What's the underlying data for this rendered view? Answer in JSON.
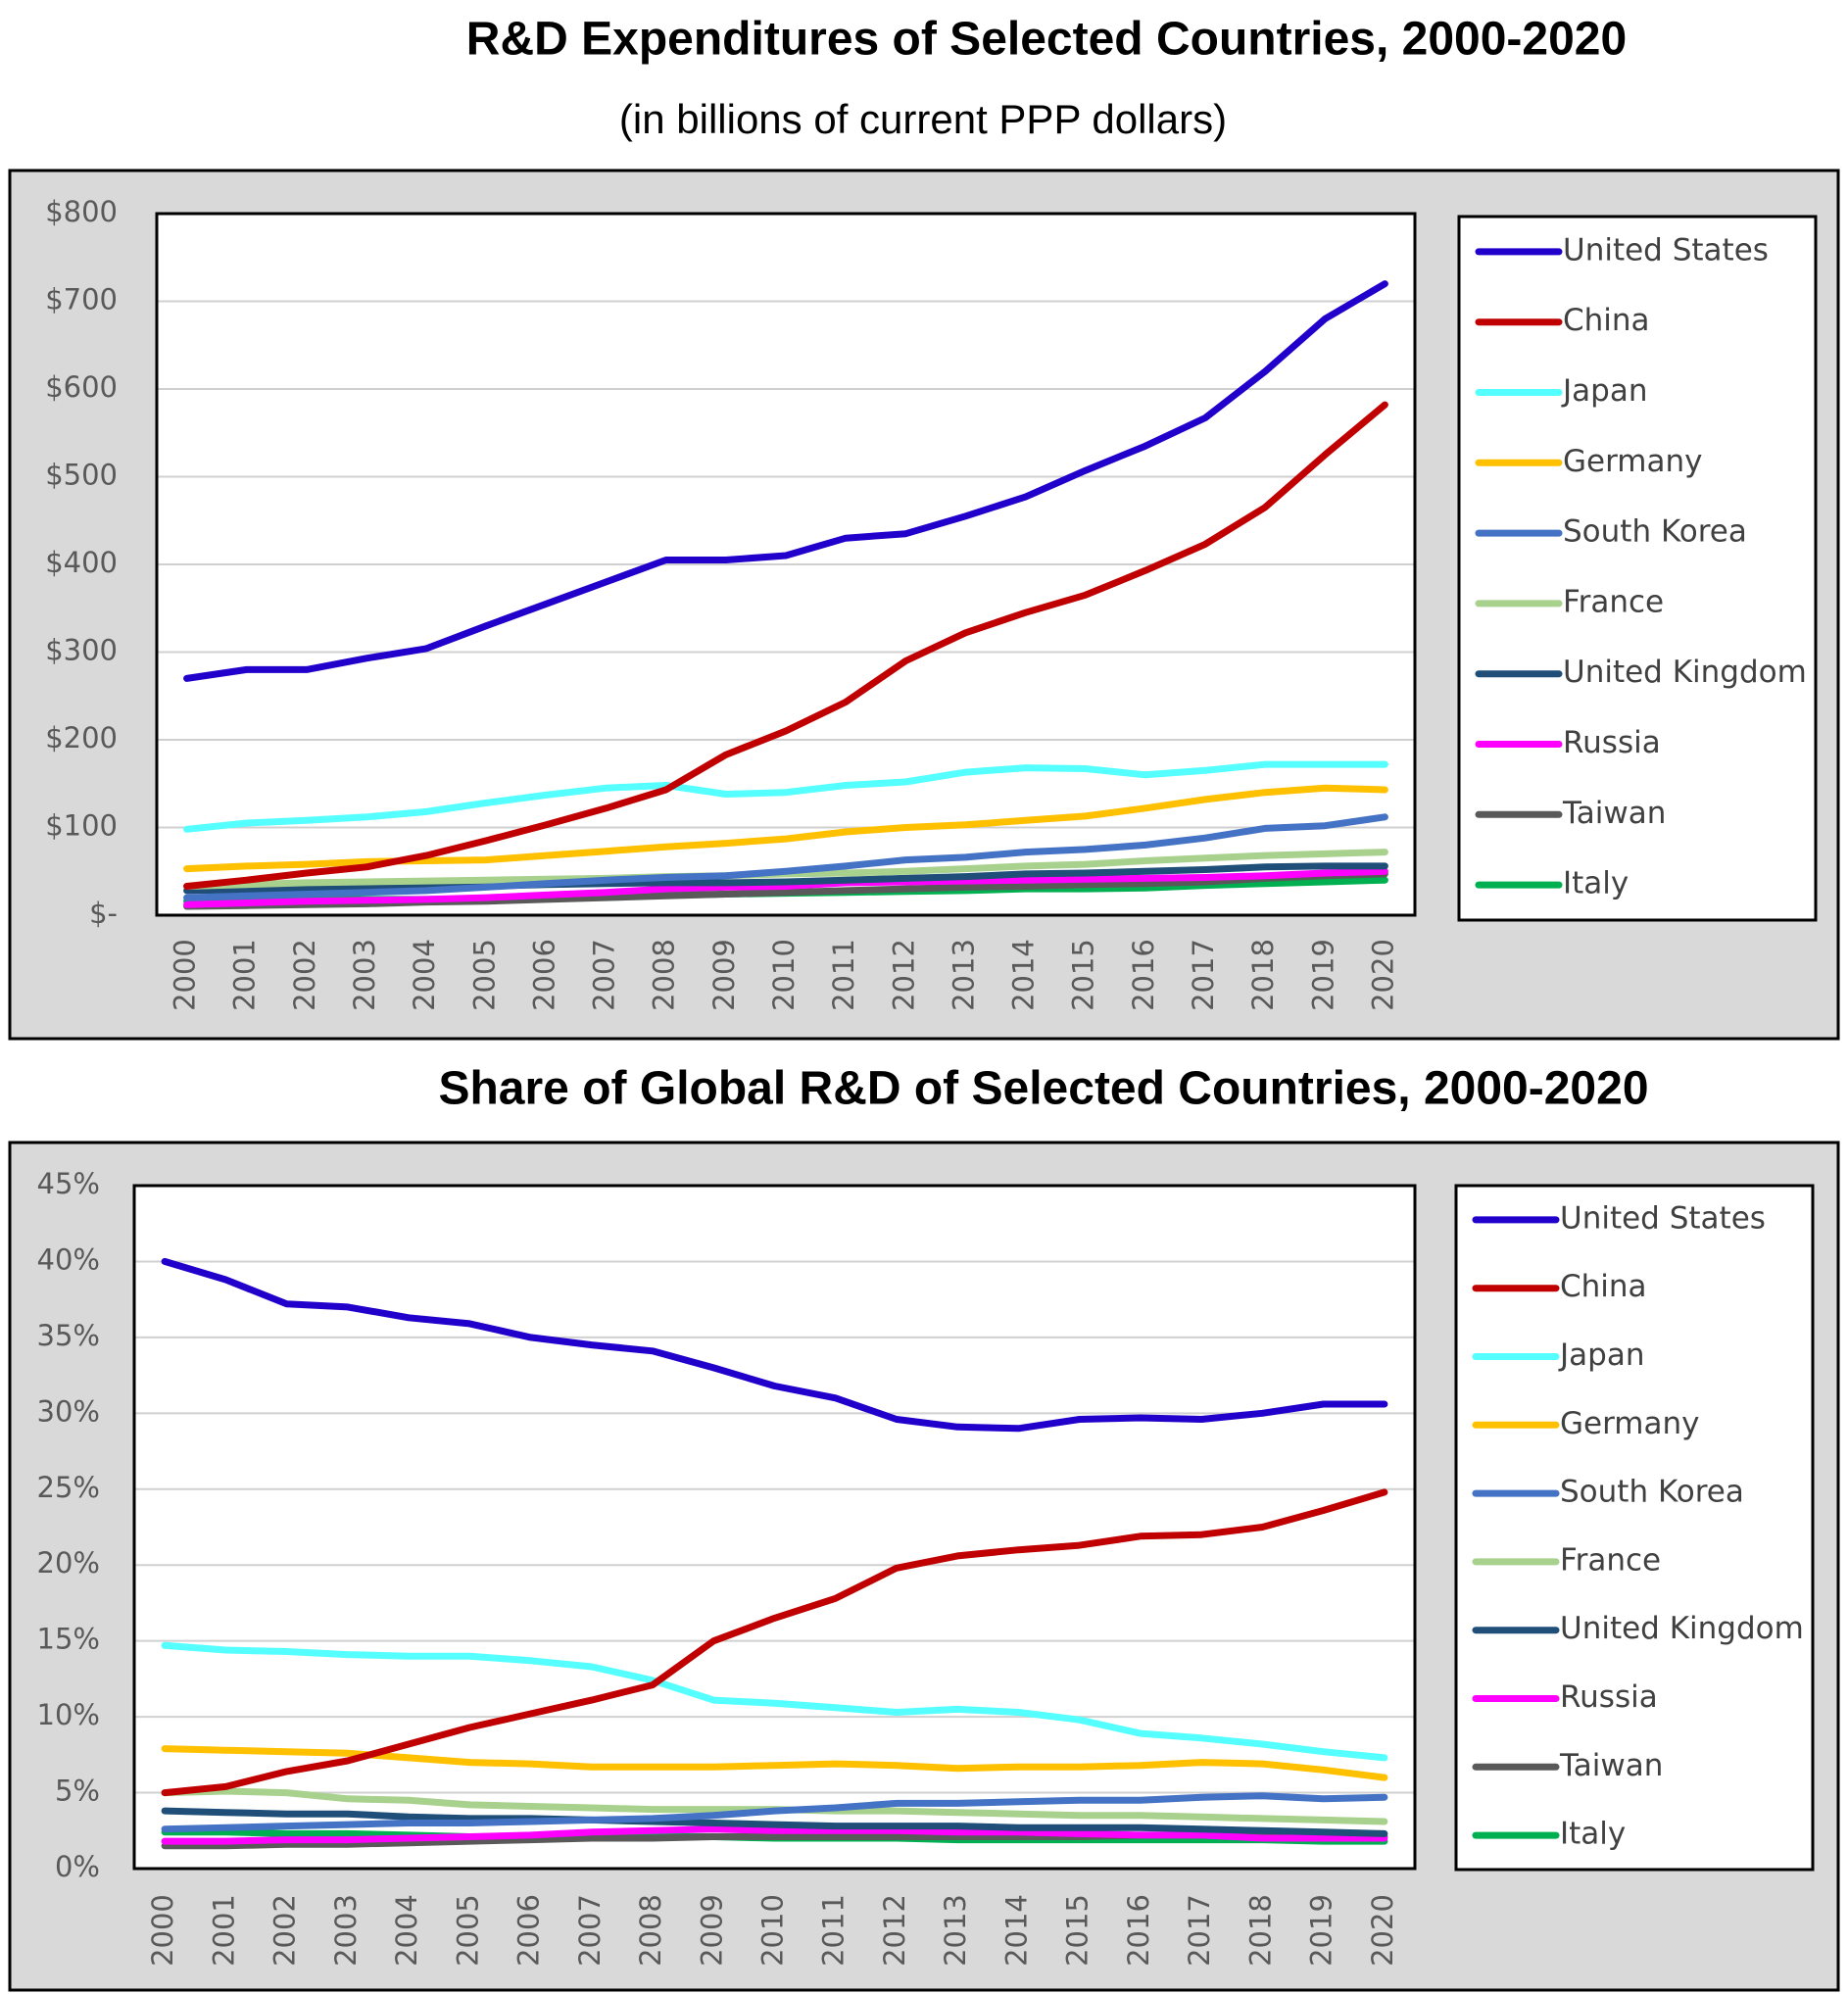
{
  "chart_data": [
    {
      "type": "line",
      "title": "R&D Expenditures of Selected Countries, 2000-2020",
      "subtitle": "(in billions of current PPP dollars)",
      "categories": [
        "2000",
        "2001",
        "2002",
        "2003",
        "2004",
        "2005",
        "2006",
        "2007",
        "2008",
        "2009",
        "2010",
        "2011",
        "2012",
        "2013",
        "2014",
        "2015",
        "2016",
        "2017",
        "2018",
        "2019",
        "2020"
      ],
      "ylim": [
        0,
        800
      ],
      "yticks": [
        {
          "value": 0,
          "label": "$-"
        },
        {
          "value": 100,
          "label": "$100"
        },
        {
          "value": 200,
          "label": "$200"
        },
        {
          "value": 300,
          "label": "$300"
        },
        {
          "value": 400,
          "label": "$400"
        },
        {
          "value": 500,
          "label": "$500"
        },
        {
          "value": 600,
          "label": "$600"
        },
        {
          "value": 700,
          "label": "$700"
        },
        {
          "value": 800,
          "label": "$800"
        }
      ],
      "grid": true,
      "legend": "right",
      "series": [
        {
          "name": "United States",
          "color": "#2200cc",
          "values": [
            270,
            280,
            280,
            293,
            304,
            330,
            355,
            380,
            405,
            405,
            410,
            430,
            435,
            455,
            477,
            507,
            535,
            567,
            620,
            680,
            720
          ]
        },
        {
          "name": "China",
          "color": "#c00000",
          "values": [
            33,
            40,
            48,
            55,
            68,
            85,
            103,
            122,
            143,
            183,
            210,
            243,
            290,
            322,
            345,
            365,
            393,
            423,
            465,
            525,
            582
          ]
        },
        {
          "name": "Japan",
          "color": "#55ffff",
          "values": [
            98,
            105,
            108,
            112,
            118,
            128,
            137,
            145,
            148,
            138,
            140,
            148,
            152,
            163,
            168,
            167,
            160,
            165,
            172,
            172,
            172
          ]
        },
        {
          "name": "Germany",
          "color": "#ffc000",
          "values": [
            53,
            56,
            58,
            61,
            62,
            63,
            68,
            73,
            78,
            82,
            87,
            95,
            100,
            103,
            108,
            113,
            122,
            132,
            140,
            145,
            143
          ]
        },
        {
          "name": "South Korea",
          "color": "#4472c4",
          "values": [
            20,
            22,
            24,
            26,
            28,
            32,
            36,
            40,
            43,
            45,
            50,
            56,
            63,
            66,
            72,
            75,
            80,
            88,
            99,
            102,
            112
          ]
        },
        {
          "name": "France",
          "color": "#a9d18e",
          "values": [
            33,
            35,
            37,
            38,
            39,
            40,
            41,
            42,
            44,
            45,
            47,
            48,
            50,
            53,
            56,
            58,
            62,
            65,
            68,
            70,
            72
          ]
        },
        {
          "name": "United Kingdom",
          "color": "#1f4e79",
          "values": [
            28,
            29,
            30,
            31,
            32,
            33,
            35,
            36,
            37,
            37,
            38,
            40,
            42,
            44,
            47,
            48,
            50,
            52,
            55,
            56,
            56
          ]
        },
        {
          "name": "Russia",
          "color": "#ff00ff",
          "values": [
            12,
            14,
            16,
            17,
            18,
            20,
            23,
            26,
            30,
            32,
            33,
            37,
            38,
            39,
            40,
            41,
            42,
            43,
            45,
            48,
            50
          ]
        },
        {
          "name": "Taiwan",
          "color": "#595959",
          "values": [
            10,
            11,
            12,
            13,
            15,
            16,
            18,
            20,
            22,
            24,
            26,
            28,
            30,
            32,
            33,
            35,
            36,
            38,
            42,
            45,
            47
          ]
        },
        {
          "name": "Italy",
          "color": "#00b050",
          "values": [
            16,
            17,
            18,
            18,
            18,
            19,
            20,
            22,
            23,
            24,
            25,
            26,
            27,
            28,
            30,
            30,
            31,
            34,
            36,
            38,
            40
          ]
        }
      ]
    },
    {
      "type": "line",
      "title": "Share of Global R&D of Selected Countries, 2000-2020",
      "categories": [
        "2000",
        "2001",
        "2002",
        "2003",
        "2004",
        "2005",
        "2006",
        "2007",
        "2008",
        "2009",
        "2010",
        "2011",
        "2012",
        "2013",
        "2014",
        "2015",
        "2016",
        "2017",
        "2018",
        "2019",
        "2020"
      ],
      "ylim": [
        0,
        45
      ],
      "yticks": [
        {
          "value": 0,
          "label": "0%"
        },
        {
          "value": 5,
          "label": "5%"
        },
        {
          "value": 10,
          "label": "10%"
        },
        {
          "value": 15,
          "label": "15%"
        },
        {
          "value": 20,
          "label": "20%"
        },
        {
          "value": 25,
          "label": "25%"
        },
        {
          "value": 30,
          "label": "30%"
        },
        {
          "value": 35,
          "label": "35%"
        },
        {
          "value": 40,
          "label": "40%"
        },
        {
          "value": 45,
          "label": "45%"
        }
      ],
      "grid": true,
      "legend": "right",
      "series": [
        {
          "name": "United States",
          "color": "#2200cc",
          "values": [
            40,
            38.8,
            37.2,
            37,
            36.3,
            35.9,
            35,
            34.5,
            34.1,
            33,
            31.8,
            31,
            29.6,
            29.1,
            29,
            29.6,
            29.7,
            29.6,
            30,
            30.6,
            30.6
          ]
        },
        {
          "name": "China",
          "color": "#c00000",
          "values": [
            5,
            5.4,
            6.4,
            7.1,
            8.2,
            9.3,
            10.2,
            11.1,
            12.1,
            15,
            16.5,
            17.8,
            19.8,
            20.6,
            21,
            21.3,
            21.9,
            22,
            22.5,
            23.6,
            24.8
          ]
        },
        {
          "name": "Japan",
          "color": "#55ffff",
          "values": [
            14.7,
            14.4,
            14.3,
            14.1,
            14,
            14,
            13.7,
            13.3,
            12.4,
            11.1,
            10.9,
            10.6,
            10.3,
            10.5,
            10.3,
            9.8,
            8.9,
            8.6,
            8.2,
            7.7,
            7.3
          ]
        },
        {
          "name": "Germany",
          "color": "#ffc000",
          "values": [
            7.9,
            7.8,
            7.7,
            7.6,
            7.3,
            7,
            6.9,
            6.7,
            6.7,
            6.7,
            6.8,
            6.9,
            6.8,
            6.6,
            6.7,
            6.7,
            6.8,
            7,
            6.9,
            6.5,
            6
          ]
        },
        {
          "name": "South Korea",
          "color": "#4472c4",
          "values": [
            2.6,
            2.7,
            2.8,
            2.9,
            3,
            3,
            3.1,
            3.2,
            3.3,
            3.5,
            3.8,
            4,
            4.3,
            4.3,
            4.4,
            4.5,
            4.5,
            4.7,
            4.8,
            4.6,
            4.7
          ]
        },
        {
          "name": "France",
          "color": "#a9d18e",
          "values": [
            5,
            5.1,
            5,
            4.6,
            4.5,
            4.2,
            4.1,
            4,
            3.9,
            3.9,
            3.9,
            3.8,
            3.8,
            3.7,
            3.6,
            3.5,
            3.5,
            3.4,
            3.3,
            3.2,
            3.1
          ]
        },
        {
          "name": "United Kingdom",
          "color": "#1f4e79",
          "values": [
            3.8,
            3.7,
            3.6,
            3.6,
            3.4,
            3.3,
            3.3,
            3.2,
            3.1,
            3,
            2.9,
            2.8,
            2.8,
            2.8,
            2.7,
            2.7,
            2.7,
            2.6,
            2.5,
            2.4,
            2.3
          ]
        },
        {
          "name": "Russia",
          "color": "#ff00ff",
          "values": [
            1.8,
            1.8,
            1.9,
            1.9,
            2,
            2.1,
            2.2,
            2.4,
            2.5,
            2.6,
            2.5,
            2.5,
            2.5,
            2.4,
            2.4,
            2.3,
            2.2,
            2.2,
            2,
            2,
            2
          ]
        },
        {
          "name": "Taiwan",
          "color": "#595959",
          "values": [
            1.5,
            1.5,
            1.6,
            1.6,
            1.7,
            1.8,
            1.9,
            2,
            2,
            2.1,
            2.1,
            2.1,
            2.1,
            2.1,
            2.1,
            2.1,
            2.2,
            2.2,
            2.2,
            2.2,
            2.1
          ]
        },
        {
          "name": "Italy",
          "color": "#00b050",
          "values": [
            2.4,
            2.4,
            2.3,
            2.3,
            2.2,
            2.1,
            2.1,
            2.1,
            2.1,
            2.1,
            2,
            2,
            2,
            1.9,
            1.9,
            1.9,
            1.9,
            1.9,
            1.9,
            1.8,
            1.8
          ]
        }
      ]
    }
  ]
}
